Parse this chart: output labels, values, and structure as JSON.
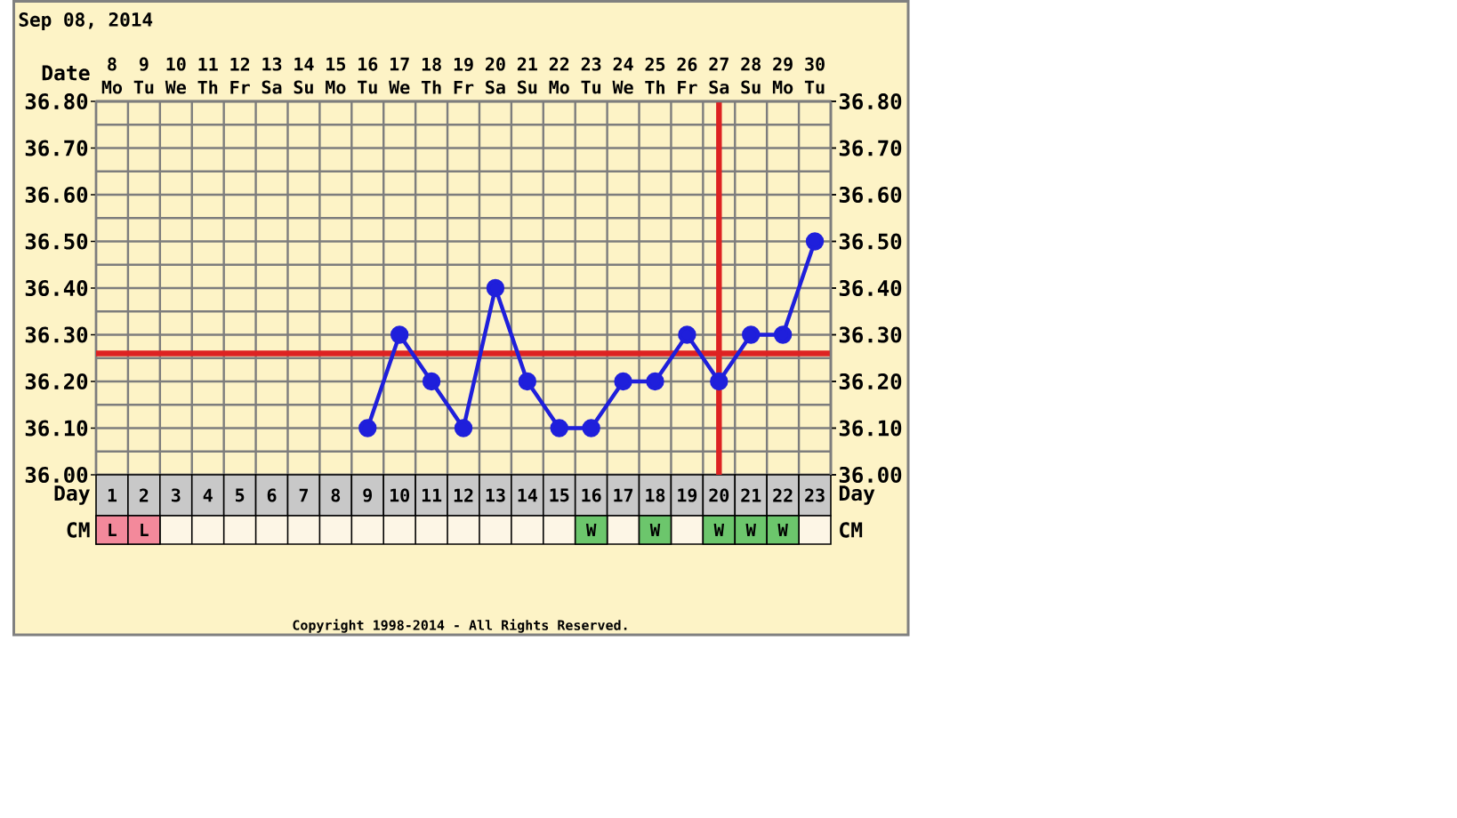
{
  "chart_data": [
    {
      "type": "line",
      "title": "Sep 08, 2014",
      "xlabel": "Day",
      "x2label": "Date",
      "x": [
        9,
        10,
        11,
        12,
        13,
        14,
        15,
        16,
        17,
        18,
        19,
        20,
        21,
        22,
        23
      ],
      "values": [
        36.1,
        36.3,
        36.2,
        36.1,
        36.4,
        36.2,
        36.1,
        36.1,
        36.2,
        36.2,
        36.3,
        36.2,
        36.3,
        36.3,
        36.5
      ],
      "color": "#1f1fdb",
      "marker": "circle",
      "line_style": "solid",
      "xlim": [
        0.5,
        23.5
      ],
      "xticks": [
        1,
        2,
        3,
        4,
        5,
        6,
        7,
        8,
        9,
        10,
        11,
        12,
        13,
        14,
        15,
        16,
        17,
        18,
        19,
        20,
        21,
        22,
        23
      ],
      "x2lim": [
        "2014-09-07T12:00",
        "2014-09-30T12:00"
      ],
      "x2ticks": [
        {
          "value": "2014-09-08",
          "label": "8 Mo"
        },
        {
          "value": "2014-09-09",
          "label": "9 Tu"
        },
        {
          "value": "2014-09-10",
          "label": "10 We"
        },
        {
          "value": "2014-09-11",
          "label": "11 Th"
        },
        {
          "value": "2014-09-12",
          "label": "12 Fr"
        },
        {
          "value": "2014-09-13",
          "label": "13 Sa"
        },
        {
          "value": "2014-09-14",
          "label": "14 Su"
        },
        {
          "value": "2014-09-15",
          "label": "15 Mo"
        },
        {
          "value": "2014-09-16",
          "label": "16 Tu"
        },
        {
          "value": "2014-09-17",
          "label": "17 We"
        },
        {
          "value": "2014-09-18",
          "label": "18 Th"
        },
        {
          "value": "2014-09-19",
          "label": "19 Fr"
        },
        {
          "value": "2014-09-20",
          "label": "20 Sa"
        },
        {
          "value": "2014-09-21",
          "label": "21 Su"
        },
        {
          "value": "2014-09-22",
          "label": "22 Mo"
        },
        {
          "value": "2014-09-23",
          "label": "23 Tu"
        },
        {
          "value": "2014-09-24",
          "label": "24 We"
        },
        {
          "value": "2014-09-25",
          "label": "25 Th"
        },
        {
          "value": "2014-09-26",
          "label": "26 Fr"
        },
        {
          "value": "2014-09-27",
          "label": "27 Sa"
        },
        {
          "value": "2014-09-28",
          "label": "28 Su"
        },
        {
          "value": "2014-09-29",
          "label": "29 Mo"
        },
        {
          "value": "2014-09-30",
          "label": "30 Tu"
        }
      ],
      "ylim": [
        36.0,
        36.8
      ],
      "yticks": [
        {
          "value": 36.0,
          "label": "36.00"
        },
        {
          "value": 36.05,
          "label": null
        },
        {
          "value": 36.1,
          "label": "36.10"
        },
        {
          "value": 36.15,
          "label": null
        },
        {
          "value": 36.2,
          "label": "36.20"
        },
        {
          "value": 36.25,
          "label": null
        },
        {
          "value": 36.3,
          "label": "36.30"
        },
        {
          "value": 36.35,
          "label": null
        },
        {
          "value": 36.4,
          "label": "36.40"
        },
        {
          "value": 36.45,
          "label": null
        },
        {
          "value": 36.5,
          "label": "36.50"
        },
        {
          "value": 36.55,
          "label": null
        },
        {
          "value": 36.6,
          "label": "36.60"
        },
        {
          "value": 36.65,
          "label": null
        },
        {
          "value": 36.7,
          "label": "36.70"
        },
        {
          "value": 36.75,
          "label": null
        },
        {
          "value": 36.8,
          "label": "36.80"
        }
      ],
      "y2lim": [
        36.0,
        36.8
      ],
      "y2ticks": [
        {
          "value": 36.0,
          "label": "36.00"
        },
        {
          "value": 36.1,
          "label": "36.10"
        },
        {
          "value": 36.2,
          "label": "36.20"
        },
        {
          "value": 36.3,
          "label": "36.30"
        },
        {
          "value": 36.4,
          "label": "36.40"
        },
        {
          "value": 36.5,
          "label": "36.50"
        },
        {
          "value": 36.6,
          "label": "36.60"
        },
        {
          "value": 36.7,
          "label": "36.70"
        },
        {
          "value": 36.8,
          "label": "36.80"
        }
      ],
      "grid": true,
      "ref_lines": [
        {
          "axis": "y",
          "value": 36.26,
          "color": "#dd2222"
        },
        {
          "axis": "x",
          "value": 20,
          "color": "#dd2222"
        }
      ],
      "annotations": [
        "Copyright 1998-2014 - All Rights Reserved."
      ]
    },
    {
      "type": "other",
      "y_categories": [
        "CM"
      ],
      "y2_categories": [
        "CM"
      ],
      "cell_labels": [
        [
          "L",
          "L",
          null,
          null,
          null,
          null,
          null,
          null,
          null,
          null,
          null,
          null,
          null,
          null,
          null,
          "W",
          null,
          "W",
          null,
          "W",
          "W",
          "W",
          null
        ]
      ],
      "colors": [
        [
          "#f3899b",
          "#f3899b",
          null,
          null,
          null,
          null,
          null,
          null,
          null,
          null,
          null,
          null,
          null,
          null,
          null,
          "#6cc66c",
          null,
          "#6cc66c",
          null,
          "#6cc66c",
          "#6cc66c",
          "#6cc66c",
          null
        ]
      ]
    }
  ]
}
